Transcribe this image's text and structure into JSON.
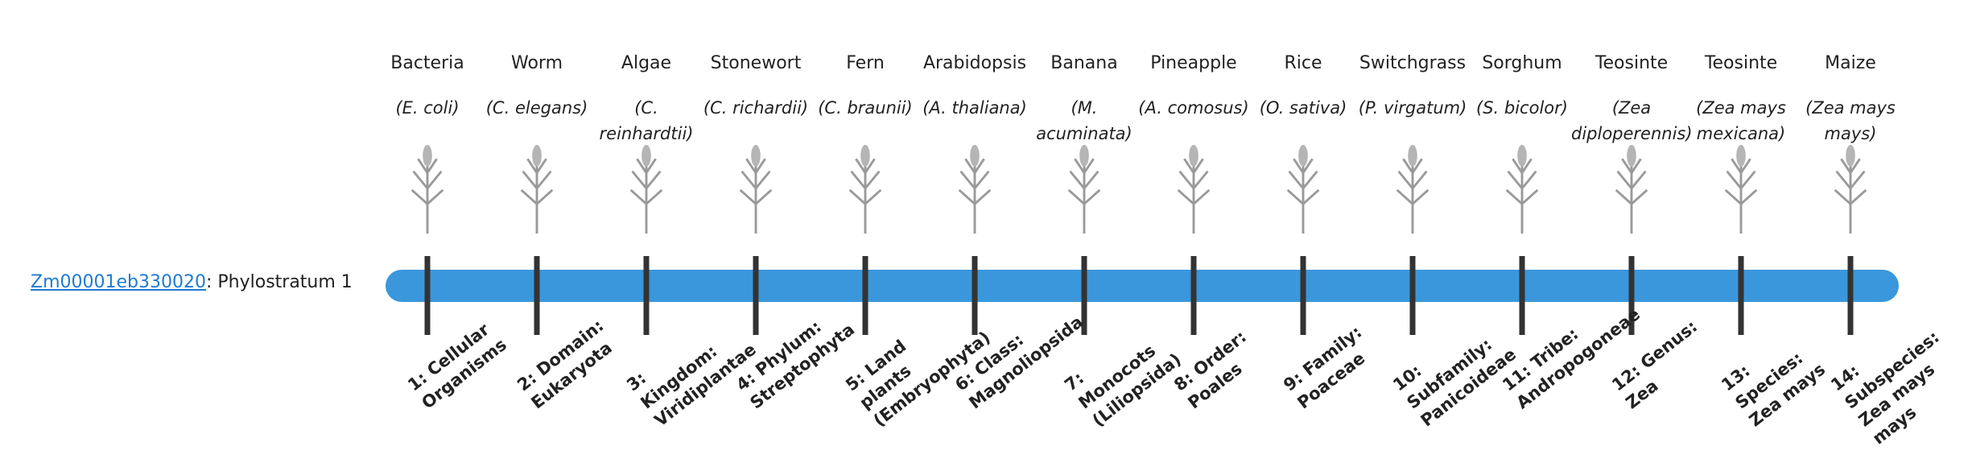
{
  "gene": {
    "id": "Zm00001eb330020",
    "suffix": ": Phylostratum 1"
  },
  "strata": [
    {
      "name": "Bacteria",
      "species": "(E. coli)",
      "rank": "1: Cellular Organisms"
    },
    {
      "name": "Worm",
      "species": "(C. elegans)",
      "rank": "2: Domain: Eukaryota"
    },
    {
      "name": "Algae",
      "species": "(C. reinhardtii)",
      "rank": "3: Kingdom: Viridiplantae"
    },
    {
      "name": "Stonewort",
      "species": "(C. richardii)",
      "rank": "4: Phylum: Streptophyta"
    },
    {
      "name": "Fern",
      "species": "(C. braunii)",
      "rank": "5: Land plants (Embryophyta)"
    },
    {
      "name": "Arabidopsis",
      "species": "(A. thaliana)",
      "rank": "6: Class: Magnoliopsida"
    },
    {
      "name": "Banana",
      "species": "(M. acuminata)",
      "rank": "7: Monocots (Liliopsida)"
    },
    {
      "name": "Pineapple",
      "species": "(A. comosus)",
      "rank": "8: Order: Poales"
    },
    {
      "name": "Rice",
      "species": "(O. sativa)",
      "rank": "9: Family: Poaceae"
    },
    {
      "name": "Switchgrass",
      "species": "(P. virgatum)",
      "rank": "10: Subfamily: Panicoideae"
    },
    {
      "name": "Sorghum",
      "species": "(S. bicolor)",
      "rank": "11: Tribe: Andropogoneae"
    },
    {
      "name": "Teosinte",
      "species": "(Zea diploperennis)",
      "rank": "12: Genus: Zea"
    },
    {
      "name": "Teosinte",
      "species": "(Zea mays mexicana)",
      "rank": "13: Species: Zea mays"
    },
    {
      "name": "Maize",
      "species": "(Zea mays mays)",
      "rank": "14: Subspecies: Zea mays mays"
    }
  ]
}
